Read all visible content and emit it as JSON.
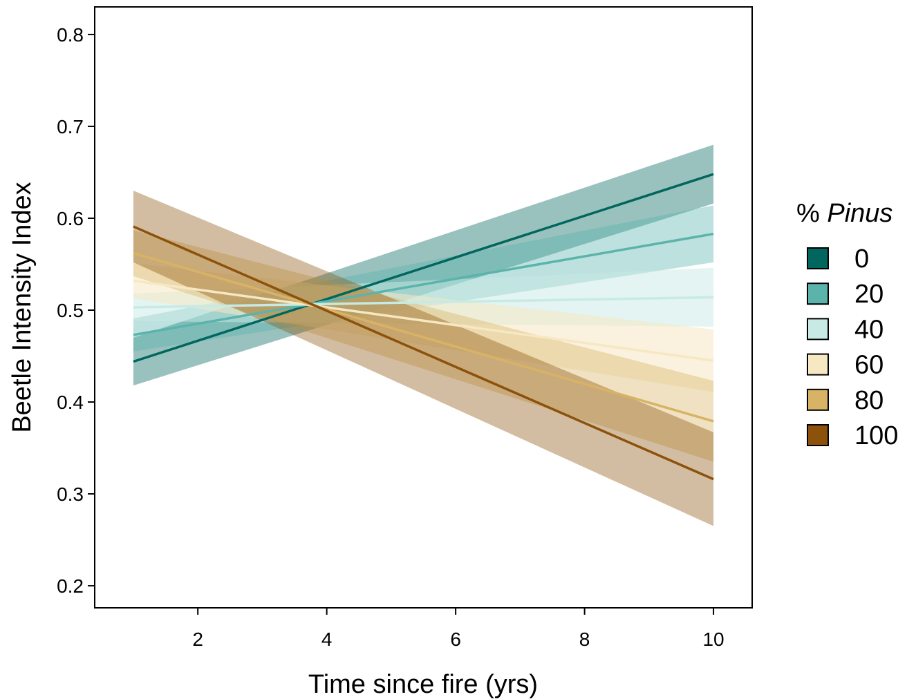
{
  "chart_data": {
    "type": "line",
    "title": "",
    "xlabel": "Time since fire (yrs)",
    "ylabel": "Beetle Intensity Index",
    "xlim": [
      0.4,
      10.6
    ],
    "ylim": [
      0.176,
      0.83
    ],
    "x_ticks": [
      2,
      4,
      6,
      8,
      10
    ],
    "y_ticks": [
      0.2,
      0.3,
      0.4,
      0.5,
      0.6,
      0.7,
      0.8
    ],
    "x_tick_labels": [
      "2",
      "4",
      "6",
      "8",
      "10"
    ],
    "y_tick_labels": [
      "0.2",
      "0.3",
      "0.4",
      "0.5",
      "0.6",
      "0.7",
      "0.8"
    ],
    "grid": false,
    "legend": {
      "title_prefix": "% ",
      "title_italic": "Pinus",
      "position": "right"
    },
    "series": [
      {
        "name": "0",
        "color": "#01665e",
        "band_opacity": 0.4,
        "x": [
          1,
          10
        ],
        "y": [
          0.444,
          0.648
        ],
        "lower": [
          0.418,
          0.616
        ],
        "upper": [
          0.47,
          0.68
        ]
      },
      {
        "name": "20",
        "color": "#5ab4ac",
        "band_opacity": 0.4,
        "x": [
          1,
          10
        ],
        "y": [
          0.473,
          0.583
        ],
        "lower": [
          0.455,
          0.552
        ],
        "upper": [
          0.491,
          0.614
        ]
      },
      {
        "name": "40",
        "color": "#c7eae5",
        "band_opacity": 0.5,
        "x": [
          1,
          10
        ],
        "y": [
          0.503,
          0.514
        ],
        "lower": [
          0.488,
          0.482
        ],
        "upper": [
          0.518,
          0.546
        ]
      },
      {
        "name": "60",
        "color": "#f6e8c3",
        "band_opacity": 0.55,
        "x": [
          1,
          10
        ],
        "y": [
          0.532,
          0.445
        ],
        "lower": [
          0.513,
          0.411
        ],
        "upper": [
          0.551,
          0.479
        ]
      },
      {
        "name": "80",
        "color": "#d8b365",
        "band_opacity": 0.4,
        "x": [
          1,
          10
        ],
        "y": [
          0.562,
          0.379
        ],
        "lower": [
          0.537,
          0.335
        ],
        "upper": [
          0.587,
          0.423
        ]
      },
      {
        "name": "100",
        "color": "#8c510a",
        "band_opacity": 0.38,
        "x": [
          1,
          10
        ],
        "y": [
          0.591,
          0.316
        ],
        "lower": [
          0.552,
          0.265
        ],
        "upper": [
          0.63,
          0.367
        ]
      }
    ]
  }
}
